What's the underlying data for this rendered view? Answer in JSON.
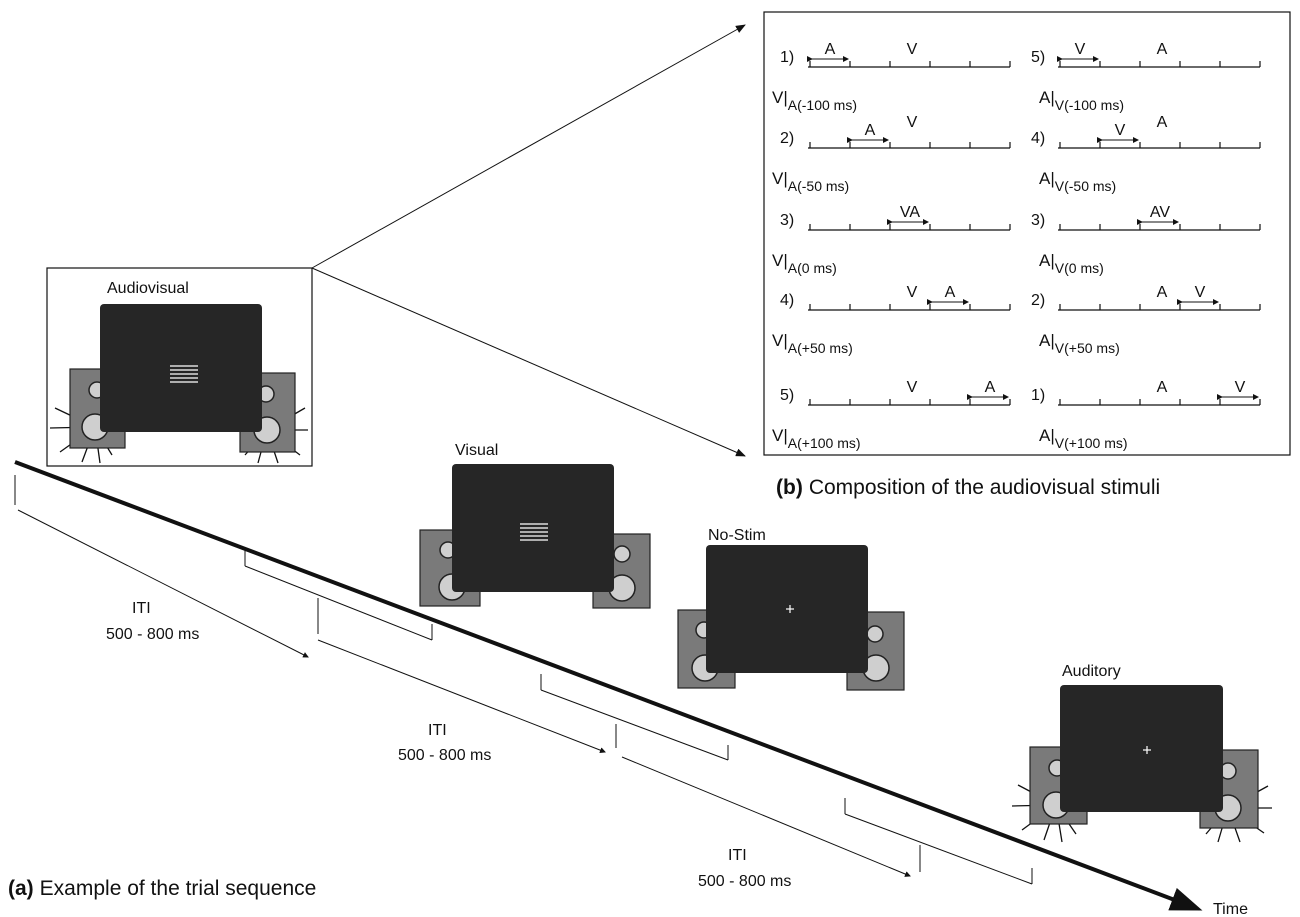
{
  "panel_a": {
    "caption_tag": "(a)",
    "caption_text": "Example of the trial sequence",
    "time_label": "Time",
    "stimuli": [
      "Audiovisual",
      "Visual",
      "No-Stim",
      "Auditory"
    ],
    "iti": [
      {
        "label": "ITI",
        "range": "500 - 800 ms"
      },
      {
        "label": "ITI",
        "range": "500 - 800 ms"
      },
      {
        "label": "ITI",
        "range": "500 - 800 ms"
      }
    ]
  },
  "panel_b": {
    "caption_tag": "(b)",
    "caption_text": "Composition of the audiovisual stimuli",
    "left": [
      {
        "number": "1)",
        "arrow_label": "A",
        "other_label": "V",
        "label_main": "V|",
        "label_sub": "A(-100 ms)"
      },
      {
        "number": "2)",
        "arrow_label": "A",
        "other_label": "V",
        "label_main": "V|",
        "label_sub": "A(-50 ms)"
      },
      {
        "number": "3)",
        "arrow_label": "VA",
        "label_main": "V|",
        "label_sub": "A(0 ms)"
      },
      {
        "number": "4)",
        "arrow_label": "A",
        "other_label": "V",
        "label_main": "V|",
        "label_sub": "A(+50 ms)"
      },
      {
        "number": "5)",
        "arrow_label": "A",
        "other_label": "V",
        "label_main": "V|",
        "label_sub": "A(+100 ms)"
      }
    ],
    "right": [
      {
        "number": "5)",
        "arrow_label": "V",
        "other_label": "A",
        "label_main": "A|",
        "label_sub": "V(-100 ms)"
      },
      {
        "number": "4)",
        "arrow_label": "V",
        "other_label": "A",
        "label_main": "A|",
        "label_sub": "V(-50 ms)"
      },
      {
        "number": "3)",
        "arrow_label": "AV",
        "label_main": "A|",
        "label_sub": "V(0 ms)"
      },
      {
        "number": "2)",
        "arrow_label": "V",
        "other_label": "A",
        "label_main": "A|",
        "label_sub": "V(+50 ms)"
      },
      {
        "number": "1)",
        "arrow_label": "V",
        "other_label": "A",
        "label_main": "A|",
        "label_sub": "V(+100 ms)"
      }
    ]
  }
}
